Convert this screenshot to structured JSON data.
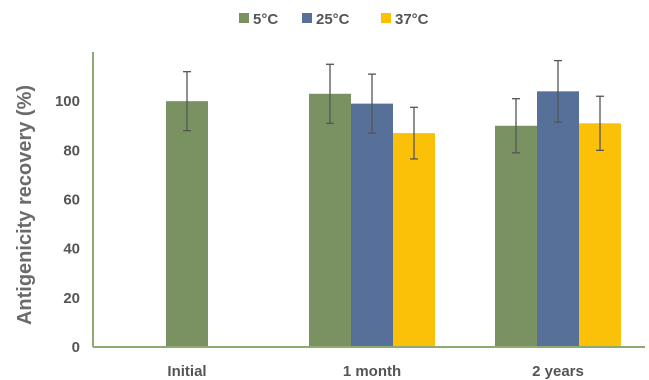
{
  "chart_data": {
    "type": "bar",
    "categories": [
      "Initial",
      "1 month",
      "2 years"
    ],
    "series": [
      {
        "name": "5°C",
        "color": "#7a9262",
        "values": [
          100,
          103,
          90
        ],
        "errors": [
          12,
          12,
          11
        ]
      },
      {
        "name": "25°C",
        "color": "#56709a",
        "values": [
          null,
          99,
          104
        ],
        "errors": [
          null,
          12,
          12.5
        ]
      },
      {
        "name": "37°C",
        "color": "#fbc108",
        "values": [
          null,
          87,
          91
        ],
        "errors": [
          null,
          10.5,
          11
        ]
      }
    ],
    "ylabel": "Antigenicity recovery (%)",
    "xlabel": "",
    "ylim": [
      0,
      120
    ],
    "yticks": [
      0,
      20,
      40,
      60,
      80,
      100
    ],
    "grid": false,
    "legend": "top-center",
    "axis_color": "#8faa70",
    "error_bar_color": "#555555"
  }
}
